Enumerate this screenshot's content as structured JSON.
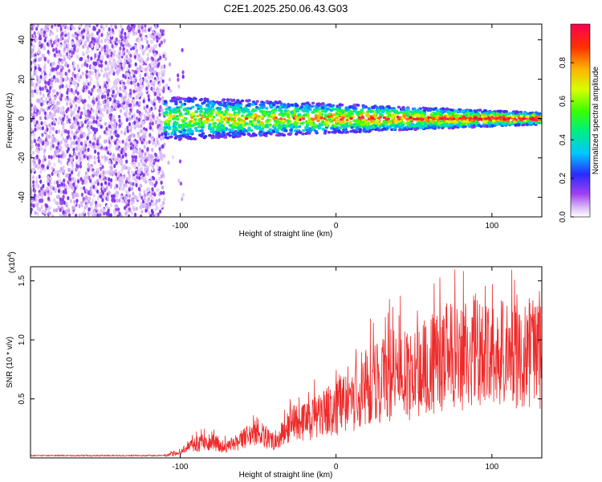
{
  "title": "C2E1.2025.250.06.43.G03",
  "chart_data": [
    {
      "type": "heatmap",
      "title": "C2E1.2025.250.06.43.G03",
      "xlabel": "Height of straight line (km)",
      "ylabel": "Frequency (Hz)",
      "xlim": [
        -196,
        132
      ],
      "ylim": [
        -50,
        48
      ],
      "xticks": [
        -100,
        0,
        100
      ],
      "xtick_labels": [
        "-100",
        "0",
        "100"
      ],
      "yticks": [
        -40,
        -20,
        0,
        20,
        40
      ],
      "ytick_labels": [
        "-40",
        "-20",
        "0",
        "20",
        "40"
      ],
      "colorbar": {
        "label": "Normalized spectral amplitude",
        "range": [
          0,
          1
        ],
        "ticks": [
          0.0,
          0.2,
          0.4,
          0.6,
          0.8
        ],
        "tick_labels": [
          "0.0",
          "0.2",
          "0.4",
          "0.6",
          "0.8"
        ],
        "colormap": [
          "#ffffff",
          "#d7b8f5",
          "#8a2be2",
          "#1e1eff",
          "#00d8ff",
          "#00ff40",
          "#e8ff00",
          "#ff7f00",
          "#ff0040"
        ]
      },
      "description_regions": [
        {
          "x_range": [
            -196,
            -110
          ],
          "freq_range": [
            -50,
            48
          ],
          "amplitude": 0.12,
          "pattern": "noise"
        },
        {
          "x_range": [
            -110,
            132
          ],
          "freq_range": [
            -4,
            4
          ],
          "amplitude": 0.6,
          "pattern": "band"
        }
      ]
    },
    {
      "type": "line",
      "xlabel": "Height of straight line (km)",
      "ylabel": "SNR (10 * v/v)",
      "y_multiplier": "(x10",
      "y_multiplier_exp": "4",
      "y_multiplier_close": ")",
      "xlim": [
        -196,
        132
      ],
      "ylim": [
        0,
        1.62
      ],
      "xticks": [
        -100,
        0,
        100
      ],
      "xtick_labels": [
        "-100",
        "0",
        "100"
      ],
      "yticks": [
        0.5,
        1.0,
        1.5
      ],
      "ytick_labels": [
        "0.5",
        "1.0",
        "1.5"
      ],
      "color": "#ee2b2b",
      "trend": {
        "x": [
          -196,
          -110,
          -100,
          -90,
          -80,
          -70,
          -60,
          -50,
          -40,
          -30,
          -20,
          -10,
          0,
          10,
          20,
          30,
          40,
          50,
          60,
          70,
          80,
          90,
          100,
          110,
          120,
          132
        ],
        "y": [
          0.02,
          0.02,
          0.05,
          0.12,
          0.14,
          0.09,
          0.16,
          0.22,
          0.14,
          0.28,
          0.3,
          0.36,
          0.42,
          0.48,
          0.6,
          0.65,
          0.72,
          0.7,
          0.78,
          0.85,
          0.88,
          0.9,
          0.87,
          0.9,
          0.9,
          0.88
        ]
      }
    }
  ]
}
